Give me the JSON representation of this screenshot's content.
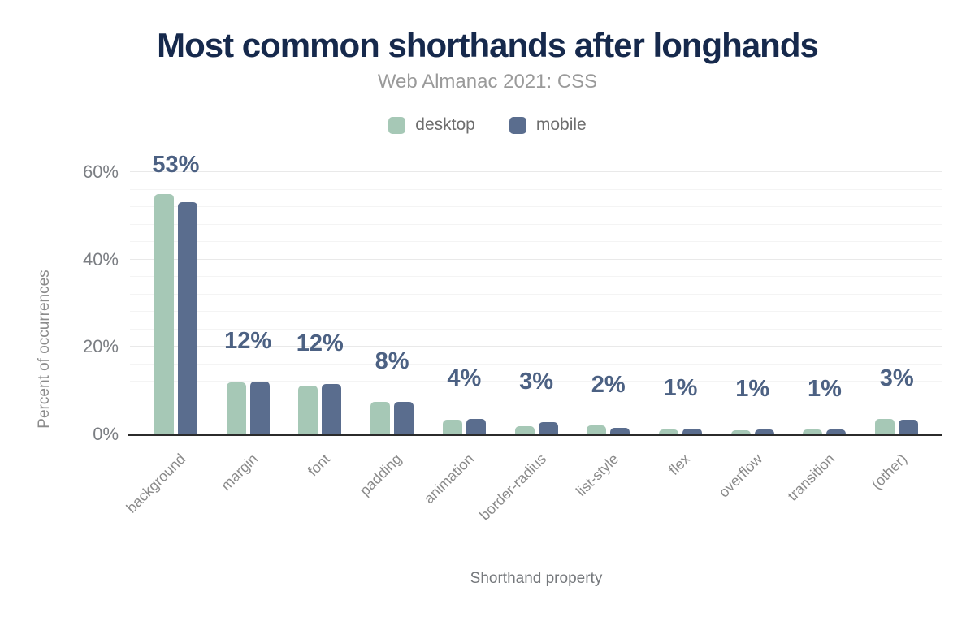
{
  "chart": {
    "title": "Most common shorthands after longhands",
    "subtitle": "Web Almanac 2021: CSS",
    "x_axis_title": "Shorthand property",
    "y_axis_title": "Percent of occurrences"
  },
  "colors": {
    "desktop": "#a6c8b6",
    "mobile": "#5a6d8e",
    "value_label": "#4c6183",
    "title": "#16294c",
    "subtitle": "#9a9a9a",
    "axis_line": "#2b2b2b",
    "grid_minor": "#f4f4f4",
    "grid_major": "#e9e9e9"
  },
  "chart_data": {
    "type": "bar",
    "title": "Most common shorthands after longhands",
    "subtitle": "Web Almanac 2021: CSS",
    "xlabel": "Shorthand property",
    "ylabel": "Percent of occurrences",
    "categories": [
      "background",
      "margin",
      "font",
      "padding",
      "animation",
      "border-radius",
      "list-style",
      "flex",
      "overflow",
      "transition",
      "(other)"
    ],
    "series": [
      {
        "name": "desktop",
        "values": [
          54.9,
          11.9,
          11.1,
          7.4,
          3.3,
          1.9,
          2.0,
          1.2,
          0.9,
          1.2,
          3.5
        ]
      },
      {
        "name": "mobile",
        "values": [
          53.2,
          12.0,
          11.6,
          7.5,
          3.6,
          2.7,
          1.5,
          1.3,
          1.2,
          1.1,
          3.4
        ]
      }
    ],
    "bar_labels": [
      "53%",
      "12%",
      "12%",
      "8%",
      "4%",
      "3%",
      "2%",
      "1%",
      "1%",
      "1%",
      "3%"
    ],
    "y_ticks": [
      0,
      20,
      40,
      60
    ],
    "y_tick_labels": [
      "0%",
      "20%",
      "40%",
      "60%"
    ],
    "ylim": [
      0,
      60
    ],
    "minor_grid_step": 4,
    "grid": true,
    "legend_position": "top",
    "legend": [
      "desktop",
      "mobile"
    ]
  }
}
